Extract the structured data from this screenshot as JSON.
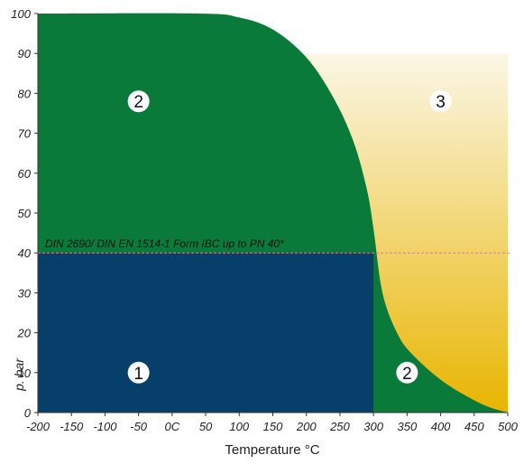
{
  "chart_data": {
    "type": "area",
    "title": "",
    "xlabel": "Temperature °C",
    "ylabel": "p. bar",
    "xlim": [
      -200,
      500
    ],
    "ylim": [
      0,
      100
    ],
    "x_ticks": [
      "-200",
      "-150",
      "-100",
      "-50",
      "0C",
      "50",
      "100",
      "150",
      "200",
      "250",
      "300",
      "350",
      "400",
      "450",
      "500"
    ],
    "x_tick_values": [
      -200,
      -150,
      -100,
      -50,
      0,
      50,
      100,
      150,
      200,
      250,
      300,
      350,
      400,
      450,
      500
    ],
    "y_ticks": [
      "0",
      "10",
      "20",
      "30",
      "40",
      "50",
      "60",
      "70",
      "80",
      "90",
      "100"
    ],
    "y_tick_values": [
      0,
      10,
      20,
      30,
      40,
      50,
      60,
      70,
      80,
      90,
      100
    ],
    "boundary_curve": {
      "x": [
        -200,
        40,
        100,
        150,
        200,
        240,
        270,
        290,
        300,
        310,
        320,
        335,
        350,
        380,
        410,
        440,
        470,
        500
      ],
      "y": [
        100,
        100,
        99,
        96,
        89,
        79,
        68,
        56,
        46,
        33,
        26,
        20,
        16,
        11,
        7,
        4,
        1.5,
        0
      ]
    },
    "zone1": {
      "x_range": [
        -200,
        300
      ],
      "y_range": [
        0,
        40
      ]
    },
    "zone3": {
      "x_range": [
        -200,
        500
      ],
      "y_range": [
        0,
        90
      ]
    },
    "reference_line": {
      "y": 40,
      "label": "DIN 2690/ DIN EN 1514-1 Form IBC up to PN 40*"
    },
    "zone_labels": [
      {
        "text": "1",
        "x": -50,
        "y": 10
      },
      {
        "text": "2",
        "x": -50,
        "y": 78
      },
      {
        "text": "2",
        "x": 350,
        "y": 10
      },
      {
        "text": "3",
        "x": 400,
        "y": 78
      }
    ],
    "colors": {
      "zone1": "#063f6a",
      "zone2": "#0a7a3a",
      "zone3_top": "#fbf7e6",
      "zone3_bottom": "#e8b500",
      "reference_line": "#e08080"
    }
  }
}
